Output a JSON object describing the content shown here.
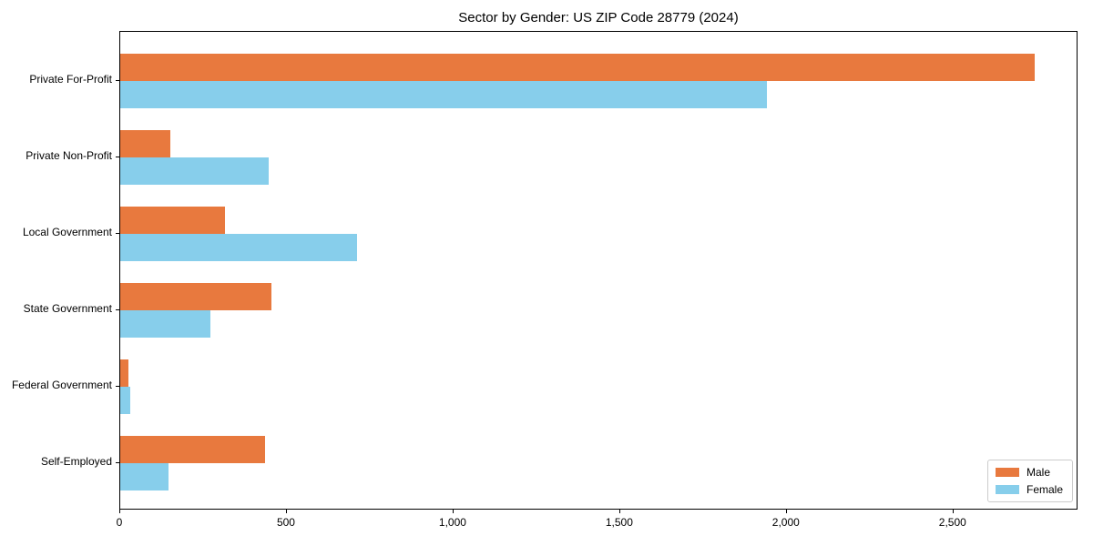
{
  "title": "Sector by Gender: US ZIP Code 28779 (2024)",
  "chart_data": {
    "type": "bar",
    "orientation": "horizontal",
    "title": "Sector by Gender: US ZIP Code 28779 (2024)",
    "categories": [
      "Private For-Profit",
      "Private Non-Profit",
      "Local Government",
      "State Government",
      "Federal Government",
      "Self-Employed"
    ],
    "series": [
      {
        "name": "Male",
        "color": "#E8793E",
        "values": [
          2745,
          150,
          315,
          455,
          25,
          435
        ]
      },
      {
        "name": "Female",
        "color": "#87CEEB",
        "values": [
          1940,
          445,
          710,
          270,
          30,
          145
        ]
      }
    ],
    "xlim": [
      0,
      2875
    ],
    "xticks": [
      0,
      500,
      1000,
      1500,
      2000,
      2500
    ],
    "xtick_labels": [
      "0",
      "500",
      "1,000",
      "1,500",
      "2,000",
      "2,500"
    ],
    "xlabel": "",
    "ylabel": "",
    "grid": false,
    "legend": {
      "position": "lower right",
      "entries": [
        "Male",
        "Female"
      ]
    }
  }
}
